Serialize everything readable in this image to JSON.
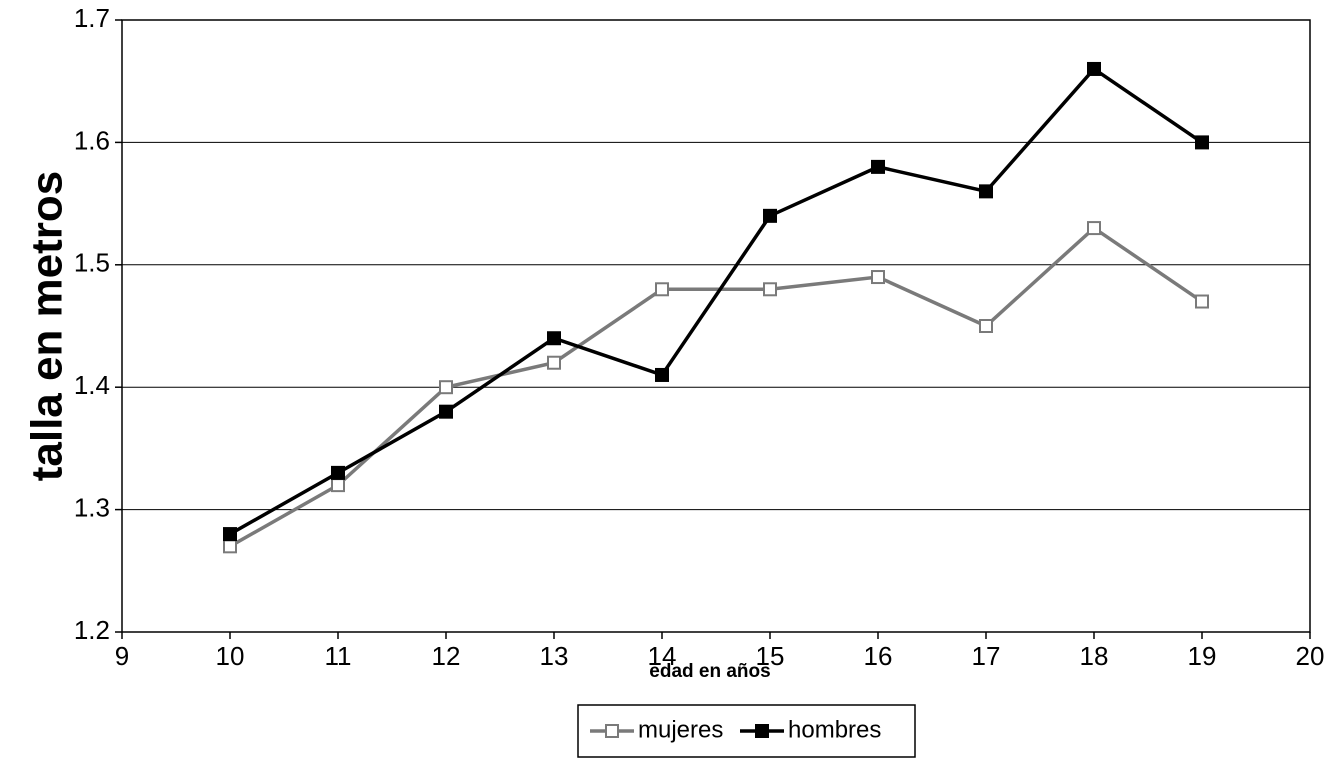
{
  "chart_data": {
    "type": "line",
    "x": [
      10,
      11,
      12,
      13,
      14,
      15,
      16,
      17,
      18,
      19
    ],
    "series": [
      {
        "name": "mujeres",
        "color": "#7a7a7a",
        "marker": "open-square",
        "values": [
          1.27,
          1.32,
          1.4,
          1.42,
          1.48,
          1.48,
          1.49,
          1.45,
          1.53,
          1.47
        ]
      },
      {
        "name": "hombres",
        "color": "#000000",
        "marker": "filled-square",
        "values": [
          1.28,
          1.33,
          1.38,
          1.44,
          1.41,
          1.54,
          1.58,
          1.56,
          1.66,
          1.6
        ]
      }
    ],
    "xlim": [
      9,
      20
    ],
    "xticks": [
      9,
      10,
      11,
      12,
      13,
      14,
      15,
      16,
      17,
      18,
      19,
      20
    ],
    "ylim": [
      1.2,
      1.7
    ],
    "yticks": [
      1.2,
      1.3,
      1.4,
      1.5,
      1.6,
      1.7
    ],
    "xlabel": "edad en años",
    "ylabel": "talla en metros",
    "grid": true,
    "legend": "bottom"
  }
}
